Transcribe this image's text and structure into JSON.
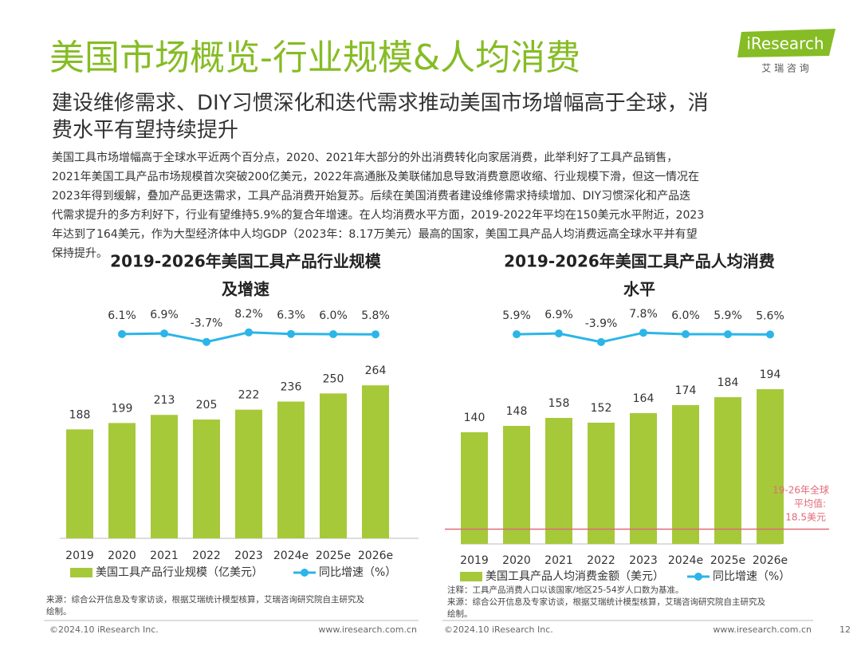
{
  "page": {
    "title": "美国市场概览-行业规模&人均消费",
    "subtitle": [
      "建设维修需求、DIY习惯深化和迭代需求推动美国市场增幅高于全球，消",
      "费水平有望持续提升"
    ],
    "body": [
      "美国工具市场增幅高于全球水平近两个百分点，2020、2021年大部分的外出消费转化向家居消费，此举利好了工具产品销售，",
      "2021年美国工具产品市场规模首次突破200亿美元，2022年高通胀及美联储加息导致消费意愿收缩、行业规模下滑，但这一情况在",
      "2023年得到缓解，叠加产品更迭需求，工具产品消费开始复苏。后续在美国消费者建设维修需求持续增加、DIY习惯深化和产品迭",
      "代需求提升的多方利好下，行业有望维持5.9%的复合年增速。在人均消费水平方面，2019-2022年平均在150美元水平附近，2023",
      "年达到了164美元，作为大型经济体中人均GDP（2023年：8.17万美元）最高的国家，美国工具产品人均消费远高全球水平并有望",
      "保持提升。"
    ],
    "logo": "iResearch",
    "logo_sub": "艾 瑞 咨 询",
    "footer_left": [
      "©2024.10 iResearch Inc.",
      "©2024.10 iResearch Inc."
    ],
    "footer_right": [
      "www.iresearch.com.cn",
      "www.iresearch.com.cn"
    ],
    "page_number": "12"
  },
  "chart_data": [
    {
      "type": "bar",
      "title": [
        "2019-2026年美国工具产品行业规模",
        "及增速"
      ],
      "categories": [
        "2019",
        "2020",
        "2021",
        "2022",
        "2023",
        "2024e",
        "2025e",
        "2026e"
      ],
      "series": [
        {
          "name": "美国工具产品行业规模（亿美元）",
          "color": "#a6c93a",
          "values": [
            188,
            199,
            213,
            205,
            222,
            236,
            250,
            264
          ]
        },
        {
          "name": "同比增速（%）",
          "color": "#2bb5e8",
          "axis": "y2",
          "values": [
            null,
            6.1,
            6.9,
            -3.7,
            8.2,
            6.3,
            6.0,
            5.8
          ],
          "value_labels": [
            null,
            "6.1%",
            "6.9%",
            "-3.7%",
            "8.2%",
            "6.3%",
            "6.0%",
            "5.8%"
          ]
        }
      ],
      "ylim": [
        0,
        300
      ],
      "y2lim": [
        -30,
        30
      ],
      "source": [
        "来源：综合公开信息及专家访谈，根据艾瑞统计模型核算，艾瑞咨询研究院自主研究及",
        "绘制。"
      ]
    },
    {
      "type": "bar",
      "title": [
        "2019-2026年美国工具产品人均消费",
        "水平"
      ],
      "categories": [
        "2019",
        "2020",
        "2021",
        "2022",
        "2023",
        "2024e",
        "2025e",
        "2026e"
      ],
      "series": [
        {
          "name": "美国工具产品人均消费金额（美元）",
          "color": "#a6c93a",
          "values": [
            140,
            148,
            158,
            152,
            164,
            174,
            184,
            194
          ]
        },
        {
          "name": "同比增速（%）",
          "color": "#2bb5e8",
          "axis": "y2",
          "values": [
            null,
            5.9,
            6.9,
            -3.9,
            7.8,
            6.0,
            5.9,
            5.6
          ],
          "value_labels": [
            null,
            "5.9%",
            "6.9%",
            "-3.9%",
            "7.8%",
            "6.0%",
            "5.9%",
            "5.6%"
          ]
        }
      ],
      "ylim": [
        0,
        250
      ],
      "y2lim": [
        -30,
        30
      ],
      "reference_line": {
        "value": 18.5,
        "color": "#e06a78",
        "label": [
          "19-26年全球",
          "平均值:",
          "18.5美元"
        ]
      },
      "source": [
        "注释：工具产品消费人口以该国家/地区25-54岁人口数为基准。",
        "来源：综合公开信息及专家访谈，根据艾瑞统计模型核算，艾瑞咨询研究院自主研究及",
        "绘制。"
      ]
    }
  ]
}
